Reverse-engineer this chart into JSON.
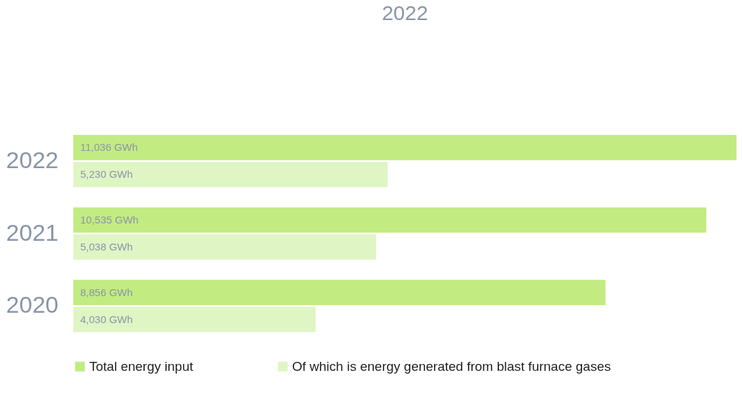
{
  "chart_data": {
    "type": "bar",
    "orientation": "horizontal",
    "title": "2022",
    "categories": [
      "2022",
      "2021",
      "2020"
    ],
    "series": [
      {
        "name": "Total energy input",
        "color": "#c2eb82",
        "values": [
          11036,
          10535,
          8856
        ],
        "value_labels": [
          "11,036 GWh",
          "10,535 GWh",
          "8,856 GWh"
        ]
      },
      {
        "name": "Of which is energy generated from blast furnace gases",
        "color": "#dff5c4",
        "values": [
          5230,
          5038,
          4030
        ],
        "value_labels": [
          "5,230 GWh",
          "5,038 GWh",
          "4,030 GWh"
        ]
      }
    ],
    "legend": "bottom",
    "tick_labels": "y"
  }
}
